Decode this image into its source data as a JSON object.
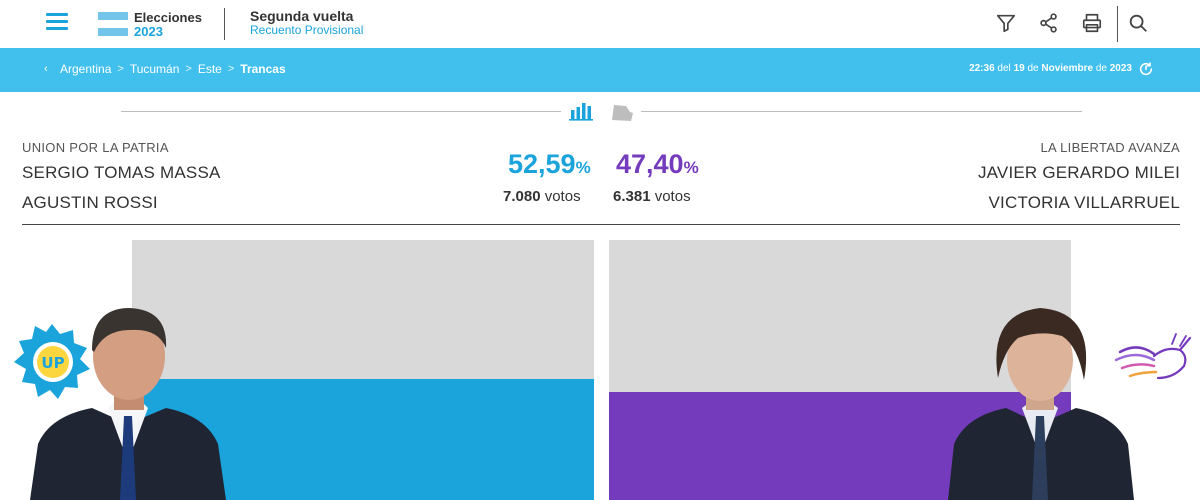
{
  "header": {
    "logo_line1": "Elecciones",
    "logo_line2": "2023",
    "title": "Segunda vuelta",
    "subtitle": "Recuento Provisional",
    "tools": [
      "filter-icon",
      "share-icon",
      "print-icon",
      "search-icon"
    ]
  },
  "breadcrumb": {
    "items": [
      "Argentina",
      "Tucumán",
      "Este"
    ],
    "current": "Trancas",
    "separator": ">"
  },
  "timestamp": {
    "time": "22:36",
    "del": "del",
    "day": "19",
    "de1": "de",
    "month": "Noviembre",
    "de2": "de",
    "year": "2023"
  },
  "results": {
    "left": {
      "party": "UNION POR LA PATRIA",
      "candidate1": "SERGIO TOMAS MASSA",
      "candidate2": "AGUSTIN ROSSI",
      "percent": "52,59",
      "percent_symbol": "%",
      "votes": "7.080",
      "votes_label": "votos",
      "percent_value": 52.59,
      "color": "#1ba4dc",
      "badge_text": "UP"
    },
    "right": {
      "party": "LA LIBERTAD AVANZA",
      "candidate1": "JAVIER GERARDO MILEI",
      "candidate2": "VICTORIA VILLARRUEL",
      "percent": "47,40",
      "percent_symbol": "%",
      "votes": "6.381",
      "votes_label": "votos",
      "percent_value": 47.4,
      "color": "#753bbd"
    }
  },
  "colors": {
    "accent": "#1ba4dc",
    "breadcrumb_bg": "#41c0ee",
    "bar_bg": "#d9d9d9",
    "left_party": "#1ba4dc",
    "right_party": "#753bbd"
  }
}
